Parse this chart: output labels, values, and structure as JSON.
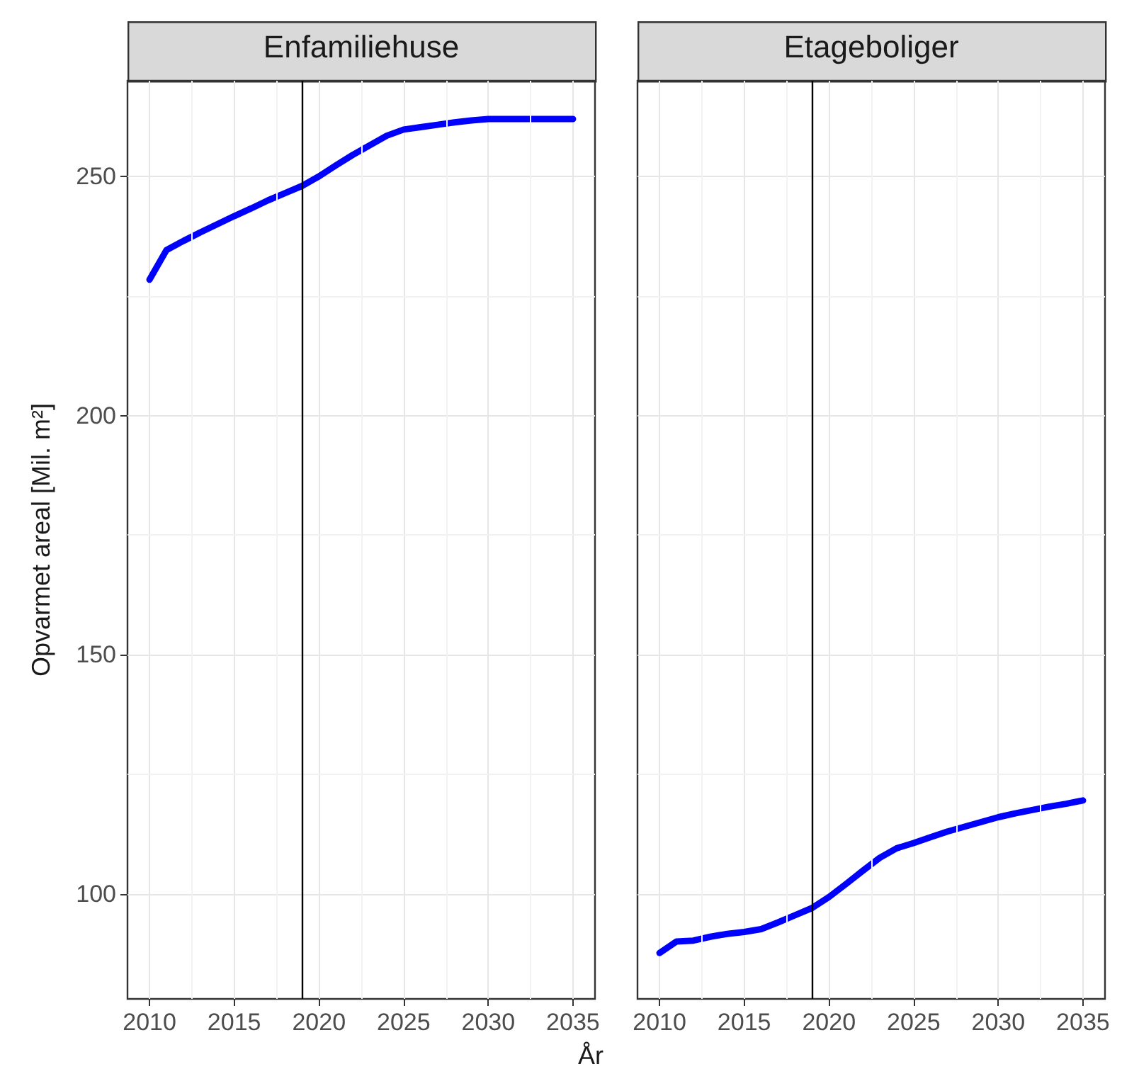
{
  "chart_data": [
    {
      "type": "line",
      "title": "Enfamiliehuse",
      "xlabel": "År",
      "ylabel": "Opvarmet areal [Mil. m²]",
      "x": [
        2010,
        2011,
        2012,
        2013,
        2014,
        2015,
        2016,
        2017,
        2018,
        2019,
        2020,
        2021,
        2022,
        2023,
        2024,
        2025,
        2026,
        2027,
        2028,
        2029,
        2030,
        2031,
        2032,
        2033,
        2034,
        2035
      ],
      "series": [
        {
          "color": "#0000ff",
          "values": [
            228.4,
            234.6,
            236.5,
            238.3,
            240,
            241.7,
            243.3,
            245,
            246.5,
            248,
            250,
            252.3,
            254.5,
            256.5,
            258.5,
            259.8,
            260.3,
            260.8,
            261.3,
            261.7,
            262,
            262,
            262,
            262,
            262,
            262
          ]
        }
      ],
      "xlim": [
        2008.7,
        2036.3
      ],
      "xticks": [
        2010,
        2015,
        2020,
        2025,
        2030,
        2035
      ],
      "ylim": [
        78,
        270
      ],
      "yticks": [
        100,
        150,
        200,
        250
      ],
      "ref_lines": [
        {
          "axis": "x",
          "value": 2019,
          "color": "#000000"
        }
      ],
      "grid": true,
      "marker": "none",
      "line_style": "solid"
    },
    {
      "type": "line",
      "title": "Etageboliger",
      "x": [
        2010,
        2011,
        2012,
        2013,
        2014,
        2015,
        2016,
        2017,
        2018,
        2019,
        2020,
        2021,
        2022,
        2023,
        2024,
        2025,
        2026,
        2027,
        2028,
        2029,
        2030,
        2031,
        2032,
        2033,
        2034,
        2035
      ],
      "series": [
        {
          "color": "#0000ff",
          "values": [
            87.6,
            90,
            90.2,
            91,
            91.6,
            92,
            92.6,
            94,
            95.5,
            97,
            99.3,
            102,
            104.8,
            107.5,
            109.5,
            110.6,
            111.8,
            113,
            114,
            115,
            116,
            116.8,
            117.5,
            118.2,
            118.8,
            119.5
          ]
        }
      ],
      "xlim": [
        2008.7,
        2036.3
      ],
      "xticks": [
        2010,
        2015,
        2020,
        2025,
        2030,
        2035
      ],
      "ylim": [
        78,
        270
      ],
      "yticks": [
        100,
        150,
        200,
        250
      ],
      "ref_lines": [
        {
          "axis": "x",
          "value": 2019,
          "color": "#000000"
        }
      ],
      "grid": true,
      "marker": "none",
      "line_style": "solid",
      "tick_labels": "x"
    }
  ]
}
